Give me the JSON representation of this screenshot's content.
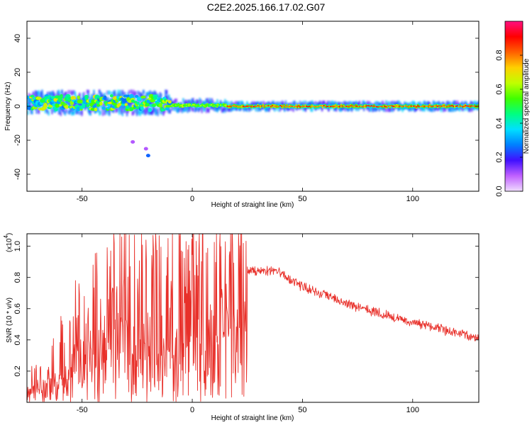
{
  "title": "C2E2.2025.166.17.02.G07",
  "chart_data": [
    {
      "type": "heatmap",
      "xlabel": "Height of straight line (km)",
      "ylabel": "Frequency (Hz)",
      "xlim": [
        -75,
        130
      ],
      "ylim": [
        -50,
        50
      ],
      "xticks": [
        -50,
        0,
        50,
        100
      ],
      "yticks": [
        -40,
        -20,
        0,
        20,
        40
      ],
      "colorbar": {
        "label": "Normalized spectral amplitude",
        "range": [
          0,
          1
        ],
        "ticks": [
          0.0,
          0.2,
          0.4,
          0.6,
          0.8
        ],
        "tick_labels": [
          "0.0",
          "0.2",
          "0.4",
          "0.6",
          "0.8"
        ],
        "colormap": [
          "#f0dcff",
          "#c060ff",
          "#4010ff",
          "#0080ff",
          "#00e0ff",
          "#00ff80",
          "#40ff00",
          "#c0ff00",
          "#ffd000",
          "#ff6000",
          "#ff0000",
          "#ff1080"
        ]
      },
      "ridge": {
        "note_free": true,
        "segments": [
          {
            "x_start": -75,
            "x_end": -10,
            "freq_center": 2,
            "spread": 6,
            "peak": 0.45
          },
          {
            "x_start": -10,
            "x_end": 15,
            "freq_center": 0.5,
            "spread": 3,
            "peak": 0.65
          },
          {
            "x_start": 15,
            "x_end": 130,
            "freq_center": 0,
            "spread": 2,
            "peak": 0.9
          }
        ],
        "outliers": [
          {
            "x": -20,
            "y": -29,
            "value": 0.25
          },
          {
            "x": -21,
            "y": -25,
            "value": 0.1
          },
          {
            "x": -27,
            "y": -21,
            "value": 0.1
          }
        ]
      }
    },
    {
      "type": "line",
      "xlabel": "Height of straight line (km)",
      "ylabel": "SNR (10 * v/v)",
      "y_multiplier_label": "(x10",
      "y_multiplier_exp": "4",
      "y_multiplier_close": ")",
      "xlim": [
        -75,
        130
      ],
      "ylim": [
        0,
        1.08
      ],
      "xticks": [
        -50,
        0,
        50,
        100
      ],
      "yticks": [
        0.2,
        0.4,
        0.6,
        0.8,
        1.0
      ],
      "line_color": "#e8302a",
      "series": [
        {
          "envelope": [
            {
              "x": -75,
              "y": 0.12
            },
            {
              "x": -65,
              "y": 0.2
            },
            {
              "x": -55,
              "y": 0.35
            },
            {
              "x": -45,
              "y": 0.55
            },
            {
              "x": -35,
              "y": 0.72
            },
            {
              "x": -25,
              "y": 0.68
            },
            {
              "x": -15,
              "y": 0.62
            },
            {
              "x": -5,
              "y": 0.62
            },
            {
              "x": 5,
              "y": 0.7
            },
            {
              "x": 15,
              "y": 0.74
            },
            {
              "x": 25,
              "y": 0.85
            },
            {
              "x": 30,
              "y": 0.84
            },
            {
              "x": 35,
              "y": 0.84
            },
            {
              "x": 40,
              "y": 0.83
            },
            {
              "x": 45,
              "y": 0.78
            },
            {
              "x": 50,
              "y": 0.74
            },
            {
              "x": 60,
              "y": 0.69
            },
            {
              "x": 70,
              "y": 0.63
            },
            {
              "x": 80,
              "y": 0.59
            },
            {
              "x": 90,
              "y": 0.55
            },
            {
              "x": 100,
              "y": 0.51
            },
            {
              "x": 110,
              "y": 0.48
            },
            {
              "x": 120,
              "y": 0.44
            },
            {
              "x": 130,
              "y": 0.41
            }
          ],
          "peaks": [
            {
              "x": -32,
              "y": 1.06
            },
            {
              "x": -21,
              "y": 1.04
            },
            {
              "x": -11,
              "y": 1.05
            },
            {
              "x": 11,
              "y": 1.08
            },
            {
              "x": -37,
              "y": 0.97
            },
            {
              "x": -45,
              "y": 0.88
            },
            {
              "x": -53,
              "y": 0.78
            },
            {
              "x": 3,
              "y": 0.98
            }
          ]
        }
      ]
    }
  ]
}
